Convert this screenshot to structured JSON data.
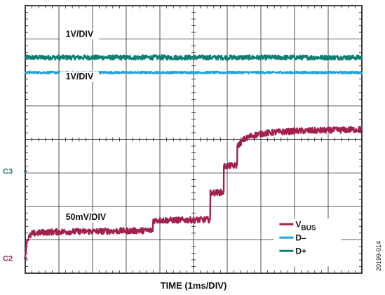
{
  "chart_data": {
    "type": "line",
    "title": "",
    "xlabel": "TIME (1ms/DIV)",
    "ylabel": "",
    "x_divisions": 10,
    "y_divisions": 8,
    "x_unit": "ms",
    "x_range": [
      0,
      10
    ],
    "grid": true,
    "figure_id": "20199-014",
    "channel_markers": [
      {
        "name": "C3",
        "color": "#0f7f74",
        "level_div": 3.05
      },
      {
        "name": "C2",
        "color": "#a0214d",
        "level_div": 0.45
      }
    ],
    "scale_annotations": [
      {
        "text": "1V/DIV",
        "x_div": 1.2,
        "y_div": 7.07
      },
      {
        "text": "1V/DIV",
        "x_div": 1.2,
        "y_div": 5.8
      },
      {
        "text": "50mV/DIV",
        "x_div": 1.2,
        "y_div": 1.6
      }
    ],
    "legend": {
      "position": "bottom-right",
      "entries": [
        {
          "label": "V",
          "sub": "BUS",
          "color": "#a0214d"
        },
        {
          "label": "D–",
          "sub": "",
          "color": "#23a3db"
        },
        {
          "label": "D+",
          "sub": "",
          "color": "#0f7f74"
        }
      ]
    },
    "series": [
      {
        "name": "D+",
        "color": "#0f7f74",
        "units": "div",
        "noise_div": 0.07,
        "x": [
          0,
          10
        ],
        "y": [
          6.45,
          6.45
        ]
      },
      {
        "name": "D–",
        "color": "#23a3db",
        "units": "div",
        "noise_div": 0.03,
        "x": [
          0,
          10
        ],
        "y": [
          6.0,
          6.0
        ]
      },
      {
        "name": "V_BUS",
        "color": "#a0214d",
        "units": "div",
        "noise_div": 0.09,
        "x": [
          0,
          0.05,
          0.2,
          0.5,
          1.0,
          2.0,
          3.8,
          3.8,
          5.5,
          5.5,
          5.9,
          5.9,
          6.3,
          6.3,
          6.5,
          6.7,
          7.0,
          7.5,
          8.0,
          9.0,
          10.0
        ],
        "y": [
          0.5,
          1.0,
          1.18,
          1.22,
          1.24,
          1.25,
          1.28,
          1.58,
          1.6,
          2.4,
          2.42,
          3.2,
          3.22,
          3.8,
          4.0,
          4.1,
          4.17,
          4.22,
          4.25,
          4.27,
          4.3
        ]
      }
    ]
  }
}
